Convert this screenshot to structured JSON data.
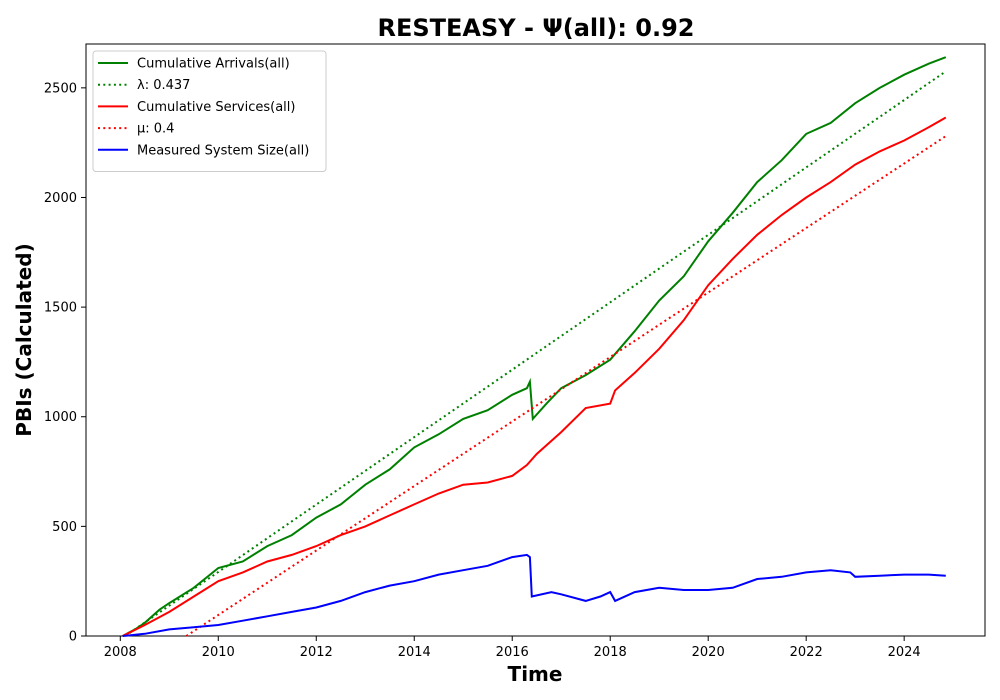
{
  "chart_data": {
    "type": "line",
    "title": "RESTEASY -  Ψ(all): 0.92",
    "xlabel": "Time",
    "ylabel": "PBIs (Calculated)",
    "xlim": [
      2007.3,
      2025.65
    ],
    "ylim": [
      0,
      2700
    ],
    "x_ticks": [
      "2008",
      "2010",
      "2012",
      "2014",
      "2016",
      "2018",
      "2020",
      "2022",
      "2024"
    ],
    "y_ticks": [
      "0",
      "500",
      "1000",
      "1500",
      "2000",
      "2500"
    ],
    "grid": false,
    "legend_position": "top-left",
    "series": [
      {
        "name": "Cumulative Arrivals(all)",
        "color": "#008000",
        "style": "solid",
        "points": [
          [
            2008.05,
            0
          ],
          [
            2008.3,
            30
          ],
          [
            2008.5,
            60
          ],
          [
            2008.8,
            120
          ],
          [
            2009.0,
            150
          ],
          [
            2009.5,
            220
          ],
          [
            2010.0,
            310
          ],
          [
            2010.5,
            340
          ],
          [
            2011.0,
            410
          ],
          [
            2011.5,
            460
          ],
          [
            2012.0,
            540
          ],
          [
            2012.5,
            600
          ],
          [
            2013.0,
            690
          ],
          [
            2013.5,
            760
          ],
          [
            2014.0,
            860
          ],
          [
            2014.5,
            920
          ],
          [
            2015.0,
            990
          ],
          [
            2015.5,
            1030
          ],
          [
            2016.0,
            1100
          ],
          [
            2016.3,
            1130
          ],
          [
            2016.36,
            1160
          ],
          [
            2016.42,
            990
          ],
          [
            2016.7,
            1060
          ],
          [
            2017.0,
            1130
          ],
          [
            2017.5,
            1190
          ],
          [
            2018.0,
            1260
          ],
          [
            2018.5,
            1390
          ],
          [
            2019.0,
            1530
          ],
          [
            2019.5,
            1640
          ],
          [
            2020.0,
            1800
          ],
          [
            2020.5,
            1930
          ],
          [
            2021.0,
            2070
          ],
          [
            2021.5,
            2170
          ],
          [
            2022.0,
            2290
          ],
          [
            2022.5,
            2340
          ],
          [
            2023.0,
            2430
          ],
          [
            2023.5,
            2500
          ],
          [
            2024.0,
            2560
          ],
          [
            2024.5,
            2610
          ],
          [
            2024.85,
            2640
          ]
        ]
      },
      {
        "name": "λ: 0.437",
        "color": "#008000",
        "style": "dotted",
        "points": [
          [
            2008.1,
            0
          ],
          [
            2024.85,
            2575
          ]
        ]
      },
      {
        "name": "Cumulative Services(all)",
        "color": "#ff0000",
        "style": "solid",
        "points": [
          [
            2008.05,
            0
          ],
          [
            2008.5,
            50
          ],
          [
            2009.0,
            110
          ],
          [
            2009.5,
            180
          ],
          [
            2010.0,
            250
          ],
          [
            2010.5,
            290
          ],
          [
            2011.0,
            340
          ],
          [
            2011.5,
            370
          ],
          [
            2012.0,
            410
          ],
          [
            2012.5,
            460
          ],
          [
            2013.0,
            500
          ],
          [
            2013.5,
            550
          ],
          [
            2014.0,
            600
          ],
          [
            2014.5,
            650
          ],
          [
            2015.0,
            690
          ],
          [
            2015.5,
            700
          ],
          [
            2016.0,
            730
          ],
          [
            2016.3,
            780
          ],
          [
            2016.5,
            830
          ],
          [
            2017.0,
            930
          ],
          [
            2017.5,
            1040
          ],
          [
            2018.0,
            1060
          ],
          [
            2018.1,
            1120
          ],
          [
            2018.5,
            1200
          ],
          [
            2019.0,
            1310
          ],
          [
            2019.5,
            1440
          ],
          [
            2020.0,
            1600
          ],
          [
            2020.5,
            1720
          ],
          [
            2021.0,
            1830
          ],
          [
            2021.5,
            1920
          ],
          [
            2022.0,
            2000
          ],
          [
            2022.5,
            2070
          ],
          [
            2023.0,
            2150
          ],
          [
            2023.5,
            2210
          ],
          [
            2024.0,
            2260
          ],
          [
            2024.5,
            2320
          ],
          [
            2024.85,
            2365
          ]
        ]
      },
      {
        "name": "μ: 0.4",
        "color": "#ff0000",
        "style": "dotted",
        "points": [
          [
            2009.35,
            0
          ],
          [
            2024.85,
            2280
          ]
        ]
      },
      {
        "name": "Measured System Size(all)",
        "color": "#0000ff",
        "style": "solid",
        "points": [
          [
            2008.05,
            0
          ],
          [
            2008.5,
            10
          ],
          [
            2009.0,
            30
          ],
          [
            2009.5,
            40
          ],
          [
            2010.0,
            50
          ],
          [
            2010.5,
            70
          ],
          [
            2011.0,
            90
          ],
          [
            2011.5,
            110
          ],
          [
            2012.0,
            130
          ],
          [
            2012.5,
            160
          ],
          [
            2013.0,
            200
          ],
          [
            2013.5,
            230
          ],
          [
            2014.0,
            250
          ],
          [
            2014.5,
            280
          ],
          [
            2015.0,
            300
          ],
          [
            2015.5,
            320
          ],
          [
            2016.0,
            360
          ],
          [
            2016.3,
            370
          ],
          [
            2016.36,
            360
          ],
          [
            2016.4,
            180
          ],
          [
            2016.8,
            200
          ],
          [
            2017.0,
            190
          ],
          [
            2017.5,
            160
          ],
          [
            2017.8,
            180
          ],
          [
            2018.0,
            200
          ],
          [
            2018.1,
            160
          ],
          [
            2018.5,
            200
          ],
          [
            2019.0,
            220
          ],
          [
            2019.5,
            210
          ],
          [
            2020.0,
            210
          ],
          [
            2020.5,
            220
          ],
          [
            2021.0,
            260
          ],
          [
            2021.5,
            270
          ],
          [
            2022.0,
            290
          ],
          [
            2022.5,
            300
          ],
          [
            2022.9,
            290
          ],
          [
            2023.0,
            270
          ],
          [
            2023.5,
            275
          ],
          [
            2024.0,
            280
          ],
          [
            2024.5,
            280
          ],
          [
            2024.85,
            275
          ]
        ]
      }
    ]
  }
}
